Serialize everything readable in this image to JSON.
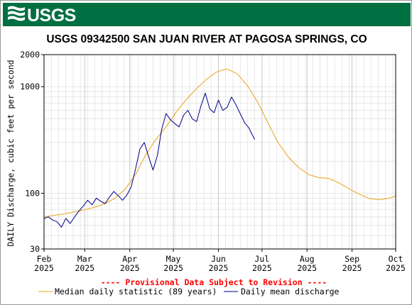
{
  "header": {
    "logo_text": "USGS",
    "bar_color": "#006f41"
  },
  "chart_data": {
    "type": "line",
    "title": "USGS 09342500 SAN JUAN RIVER AT PAGOSA SPRINGS, CO",
    "ylabel": "DAILY Discharge, cubic feet per second",
    "xlabel": "",
    "y_scale": "log",
    "ylim": [
      30,
      2000
    ],
    "xlim": [
      "2025-02-01",
      "2025-10-01"
    ],
    "y_ticks": [
      30,
      100,
      1000,
      2000
    ],
    "x_ticks": [
      {
        "date": "2025-02-01",
        "month": "Feb",
        "year": "2025"
      },
      {
        "date": "2025-03-01",
        "month": "Mar",
        "year": "2025"
      },
      {
        "date": "2025-04-01",
        "month": "Apr",
        "year": "2025"
      },
      {
        "date": "2025-05-01",
        "month": "May",
        "year": "2025"
      },
      {
        "date": "2025-06-01",
        "month": "Jun",
        "year": "2025"
      },
      {
        "date": "2025-07-01",
        "month": "Jul",
        "year": "2025"
      },
      {
        "date": "2025-08-01",
        "month": "Aug",
        "year": "2025"
      },
      {
        "date": "2025-09-01",
        "month": "Sep",
        "year": "2025"
      },
      {
        "date": "2025-10-01",
        "month": "Oct",
        "year": "2025"
      }
    ],
    "grid": true,
    "provisional_note": "---- Provisional Data Subject to Revision ----",
    "provisional_color": "#ff0000",
    "legend_position": "bottom",
    "series": [
      {
        "name": "Median daily statistic (89 years)",
        "color": "#e8a317",
        "points": [
          [
            "2025-02-01",
            60
          ],
          [
            "2025-02-08",
            62
          ],
          [
            "2025-02-15",
            64
          ],
          [
            "2025-02-22",
            67
          ],
          [
            "2025-03-01",
            70
          ],
          [
            "2025-03-08",
            74
          ],
          [
            "2025-03-15",
            80
          ],
          [
            "2025-03-22",
            90
          ],
          [
            "2025-03-29",
            110
          ],
          [
            "2025-04-05",
            150
          ],
          [
            "2025-04-12",
            230
          ],
          [
            "2025-04-19",
            320
          ],
          [
            "2025-04-26",
            420
          ],
          [
            "2025-05-03",
            580
          ],
          [
            "2025-05-10",
            760
          ],
          [
            "2025-05-17",
            960
          ],
          [
            "2025-05-24",
            1180
          ],
          [
            "2025-05-31",
            1380
          ],
          [
            "2025-06-07",
            1470
          ],
          [
            "2025-06-14",
            1320
          ],
          [
            "2025-06-21",
            1020
          ],
          [
            "2025-06-28",
            720
          ],
          [
            "2025-07-05",
            460
          ],
          [
            "2025-07-12",
            300
          ],
          [
            "2025-07-19",
            220
          ],
          [
            "2025-07-26",
            175
          ],
          [
            "2025-08-02",
            150
          ],
          [
            "2025-08-09",
            140
          ],
          [
            "2025-08-16",
            138
          ],
          [
            "2025-08-23",
            125
          ],
          [
            "2025-08-30",
            110
          ],
          [
            "2025-09-06",
            98
          ],
          [
            "2025-09-13",
            89
          ],
          [
            "2025-09-20",
            87
          ],
          [
            "2025-09-27",
            90
          ],
          [
            "2025-10-01",
            95
          ]
        ]
      },
      {
        "name": "Daily mean discharge",
        "color": "#00008b",
        "points": [
          [
            "2025-02-01",
            58
          ],
          [
            "2025-02-04",
            60
          ],
          [
            "2025-02-07",
            56
          ],
          [
            "2025-02-10",
            54
          ],
          [
            "2025-02-13",
            48
          ],
          [
            "2025-02-16",
            58
          ],
          [
            "2025-02-19",
            52
          ],
          [
            "2025-02-22",
            60
          ],
          [
            "2025-02-25",
            68
          ],
          [
            "2025-02-28",
            76
          ],
          [
            "2025-03-03",
            86
          ],
          [
            "2025-03-06",
            78
          ],
          [
            "2025-03-09",
            90
          ],
          [
            "2025-03-12",
            84
          ],
          [
            "2025-03-15",
            80
          ],
          [
            "2025-03-18",
            92
          ],
          [
            "2025-03-21",
            104
          ],
          [
            "2025-03-24",
            95
          ],
          [
            "2025-03-27",
            86
          ],
          [
            "2025-03-30",
            96
          ],
          [
            "2025-04-02",
            115
          ],
          [
            "2025-04-05",
            170
          ],
          [
            "2025-04-08",
            260
          ],
          [
            "2025-04-11",
            300
          ],
          [
            "2025-04-14",
            220
          ],
          [
            "2025-04-17",
            165
          ],
          [
            "2025-04-20",
            225
          ],
          [
            "2025-04-23",
            400
          ],
          [
            "2025-04-26",
            560
          ],
          [
            "2025-04-29",
            490
          ],
          [
            "2025-05-02",
            450
          ],
          [
            "2025-05-05",
            420
          ],
          [
            "2025-05-08",
            540
          ],
          [
            "2025-05-11",
            600
          ],
          [
            "2025-05-14",
            500
          ],
          [
            "2025-05-17",
            470
          ],
          [
            "2025-05-20",
            660
          ],
          [
            "2025-05-23",
            870
          ],
          [
            "2025-05-26",
            620
          ],
          [
            "2025-05-29",
            570
          ],
          [
            "2025-06-01",
            750
          ],
          [
            "2025-06-04",
            600
          ],
          [
            "2025-06-07",
            640
          ],
          [
            "2025-06-10",
            800
          ],
          [
            "2025-06-13",
            680
          ],
          [
            "2025-06-16",
            560
          ],
          [
            "2025-06-19",
            460
          ],
          [
            "2025-06-22",
            410
          ],
          [
            "2025-06-24",
            360
          ],
          [
            "2025-06-26",
            320
          ]
        ]
      }
    ]
  }
}
